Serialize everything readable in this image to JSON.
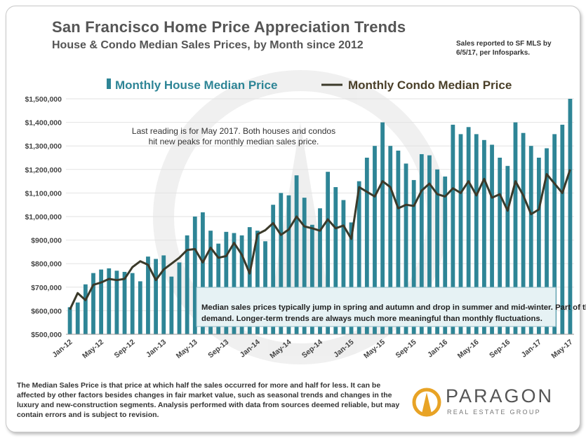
{
  "title": "San Francisco Home Price Appreciation Trends",
  "subtitle": "House & Condo Median Sales Prices, by Month since 2012",
  "source_note": "Sales reported to SF MLS by 6/5/17, per Infosparks.",
  "footnote": "The Median Sales Price is that price at which half the sales occurred for more and half for less. It can be affected by other factors besides changes in fair market value, such as seasonal trends and changes in the luxury and new-construction segments. Analysis performed with data from sources deemed reliable, but may contain errors and is subject to revision.",
  "logo": {
    "name": "PARAGON",
    "tagline": "REAL ESTATE GROUP"
  },
  "colors": {
    "bar": "#2e8596",
    "line": "#3b3a2a",
    "callout_bg": "#e6f2f4",
    "callout_border": "#8fbcc6"
  },
  "chart_data": {
    "type": "bar",
    "title": "San Francisco Home Price Appreciation Trends",
    "ylim": [
      500000,
      1500000
    ],
    "y_ticks": [
      500000,
      600000,
      700000,
      800000,
      900000,
      1000000,
      1100000,
      1200000,
      1300000,
      1400000,
      1500000
    ],
    "y_tick_labels": [
      "$500,000",
      "$600,000",
      "$700,000",
      "$800,000",
      "$900,000",
      "$1,000,000",
      "$1,100,000",
      "$1,200,000",
      "$1,300,000",
      "$1,400,000",
      "$1,500,000"
    ],
    "x_tick_labels": [
      {
        "index": 0,
        "label": "Jan-12"
      },
      {
        "index": 4,
        "label": "May-12"
      },
      {
        "index": 8,
        "label": "Sep-12"
      },
      {
        "index": 12,
        "label": "Jan-13"
      },
      {
        "index": 16,
        "label": "May-13"
      },
      {
        "index": 20,
        "label": "Sep-13"
      },
      {
        "index": 24,
        "label": "Jan-14"
      },
      {
        "index": 28,
        "label": "May-14"
      },
      {
        "index": 32,
        "label": "Sep-14"
      },
      {
        "index": 36,
        "label": "Jan-15"
      },
      {
        "index": 40,
        "label": "May-15"
      },
      {
        "index": 44,
        "label": "Sep-15"
      },
      {
        "index": 48,
        "label": "Jan-16"
      },
      {
        "index": 52,
        "label": "May-16"
      },
      {
        "index": 56,
        "label": "Sep-16"
      },
      {
        "index": 60,
        "label": "Jan-17"
      },
      {
        "index": 64,
        "label": "May-17"
      }
    ],
    "legend": [
      "Monthly House Median Price",
      "Monthly Condo Median Price"
    ],
    "series": [
      {
        "name": "Monthly House Median Price",
        "type": "bar",
        "values": [
          615000,
          635000,
          712000,
          760000,
          775000,
          780000,
          770000,
          765000,
          760000,
          725000,
          830000,
          820000,
          835000,
          745000,
          805000,
          920000,
          1000000,
          1018000,
          940000,
          885000,
          935000,
          930000,
          920000,
          955000,
          940000,
          895000,
          1050000,
          1100000,
          1090000,
          1175000,
          1080000,
          965000,
          1035000,
          1190000,
          1125000,
          1070000,
          975000,
          1150000,
          1250000,
          1300000,
          1400000,
          1300000,
          1280000,
          1225000,
          1155000,
          1265000,
          1260000,
          1200000,
          1170000,
          1390000,
          1350000,
          1380000,
          1350000,
          1325000,
          1305000,
          1250000,
          1215000,
          1400000,
          1355000,
          1300000,
          1250000,
          1290000,
          1350000,
          1390000,
          1500000
        ]
      },
      {
        "name": "Monthly Condo Median Price",
        "type": "line",
        "values": [
          605000,
          675000,
          645000,
          710000,
          720000,
          735000,
          730000,
          735000,
          785000,
          810000,
          795000,
          730000,
          775000,
          800000,
          825000,
          858000,
          862000,
          805000,
          868000,
          825000,
          832000,
          888000,
          838000,
          758000,
          925000,
          942000,
          972000,
          922000,
          945000,
          1000000,
          958000,
          950000,
          940000,
          988000,
          950000,
          962000,
          905000,
          1125000,
          1105000,
          1085000,
          1150000,
          1125000,
          1035000,
          1050000,
          1045000,
          1110000,
          1140000,
          1095000,
          1085000,
          1120000,
          1100000,
          1150000,
          1090000,
          1160000,
          1080000,
          1095000,
          1025000,
          1150000,
          1090000,
          1010000,
          1030000,
          1180000,
          1140000,
          1100000,
          1200000
        ]
      }
    ],
    "annotations": [
      "Last reading is for May 2017. Both houses and condos hit new peaks for monthly median sales price.",
      "Median sales prices typically jump in spring and autumn and drop in summer and mid-winter. Part of this is the ebb and flow of luxury home sales and in the intensity of buyer demand. Longer-term trends are always much more meaningful than monthly fluctuations."
    ]
  }
}
